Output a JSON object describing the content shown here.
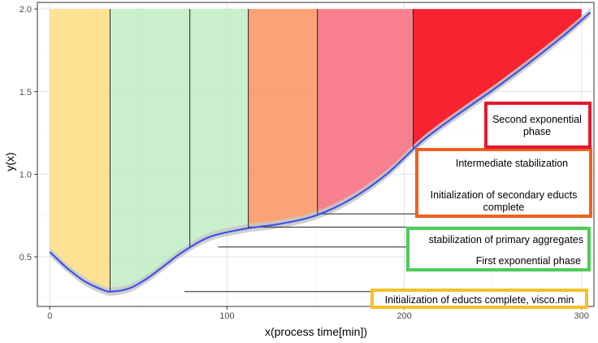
{
  "chart_data": {
    "type": "line",
    "title": "",
    "xlabel": "x(process time[min])",
    "ylabel": "y(x)",
    "xlim": [
      -7,
      307
    ],
    "ylim": [
      0.2,
      2.04
    ],
    "x_ticks": [
      0,
      100,
      200,
      300
    ],
    "y_ticks": [
      0.5,
      1.0,
      1.5,
      2.0
    ],
    "x_tick_labels": [
      "0",
      "100",
      "200",
      "300"
    ],
    "y_tick_labels": [
      "0.5",
      "1.0",
      "1.5",
      "2.0"
    ],
    "grid": true,
    "background": "#ffffff",
    "series": [
      {
        "color": "#3b55e6",
        "band_color": "#c8c8c8",
        "x": [
          0,
          10,
          20,
          30,
          35,
          45,
          55,
          65,
          75,
          90,
          110,
          130,
          150,
          170,
          190,
          210,
          230,
          250,
          270,
          290,
          305
        ],
        "y": [
          0.53,
          0.43,
          0.35,
          0.3,
          0.29,
          0.31,
          0.37,
          0.45,
          0.53,
          0.62,
          0.67,
          0.7,
          0.75,
          0.85,
          1.0,
          1.2,
          1.36,
          1.51,
          1.67,
          1.84,
          1.98
        ]
      }
    ],
    "phases": [
      {
        "start": 0,
        "end": 34,
        "color": "#fde08a"
      },
      {
        "start": 34,
        "end": 79,
        "color": "#c6eec8"
      },
      {
        "start": 79,
        "end": 112,
        "color": "#c6eec8"
      },
      {
        "start": 112,
        "end": 151,
        "color": "#fb9a6a"
      },
      {
        "start": 151,
        "end": 205,
        "color": "#f87586"
      },
      {
        "start": 205,
        "end": 300,
        "color": "#f6101e"
      }
    ],
    "phase_lines": [
      34,
      79,
      112,
      151,
      205
    ],
    "annotations": [
      {
        "id": "educts",
        "lines": [
          "Initialization of educts complete, visco.min"
        ],
        "border_color": "#f5c02a",
        "line_y": 0.29,
        "line_x_start": 76
      },
      {
        "id": "first-exp",
        "lines": [
          "First exponential phase"
        ],
        "border_color": "#4ccc58",
        "line_y": 0.56,
        "line_x_start": 95
      },
      {
        "id": "stab-primary",
        "lines": [
          "stabilization of primary aggregates"
        ],
        "border_color": "#4ccc58",
        "line_y": 0.68,
        "line_x_start": 112
      },
      {
        "id": "init-secondary",
        "lines": [
          "Initialization of secondary educts",
          "complete"
        ],
        "border_color": "#f25f1e",
        "line_y": 0.76,
        "line_x_start": 151
      },
      {
        "id": "intermediate",
        "lines": [
          "Intermediate stabilization"
        ],
        "border_color": "#f25f1e",
        "line_y": null,
        "line_x_start": null
      },
      {
        "id": "second-exp",
        "lines": [
          "Second exponential",
          "phase"
        ],
        "border_color": "#e4172f",
        "line_y": null,
        "line_x_start": null
      }
    ]
  }
}
